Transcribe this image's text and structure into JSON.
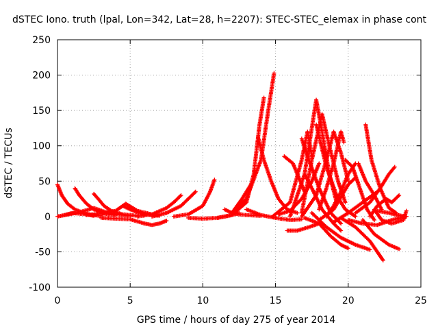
{
  "chart_data": {
    "type": "scatter",
    "title": "dSTEC Iono. truth (lpal, Lon=342, Lat=28, h=2207): STEC-STEC_elemax in phase cont",
    "xlabel": "GPS time / hours of day 275 of year 2014",
    "ylabel": "dSTEC  / TECUs",
    "xlim": [
      0,
      25
    ],
    "ylim": [
      -100,
      250
    ],
    "xticks": [
      "0",
      "5",
      "10",
      "15",
      "20",
      "25"
    ],
    "yticks": [
      "250",
      "200",
      "150",
      "100",
      "50",
      "0",
      "-50",
      "-100"
    ],
    "grid": true,
    "legend": "none",
    "marker": "plus",
    "color": "#ff0000",
    "series": [
      {
        "points": [
          [
            0.0,
            45
          ],
          [
            0.3,
            30
          ],
          [
            0.7,
            18
          ],
          [
            1.2,
            10
          ],
          [
            1.8,
            5
          ],
          [
            2.4,
            2
          ],
          [
            3.0,
            1
          ]
        ]
      },
      {
        "points": [
          [
            0.0,
            0
          ],
          [
            0.5,
            2
          ],
          [
            1.0,
            5
          ],
          [
            1.5,
            4
          ],
          [
            2.0,
            3
          ],
          [
            2.5,
            1
          ]
        ]
      },
      {
        "points": [
          [
            1.2,
            40
          ],
          [
            1.5,
            30
          ],
          [
            2.0,
            18
          ],
          [
            2.5,
            10
          ],
          [
            3.2,
            4
          ],
          [
            4.0,
            2
          ]
        ]
      },
      {
        "points": [
          [
            0.5,
            2
          ],
          [
            1.5,
            6
          ],
          [
            2.5,
            12
          ],
          [
            3.5,
            5
          ],
          [
            4.5,
            2
          ],
          [
            5.0,
            1
          ]
        ]
      },
      {
        "points": [
          [
            2.5,
            32
          ],
          [
            2.8,
            25
          ],
          [
            3.2,
            15
          ],
          [
            3.7,
            8
          ],
          [
            4.5,
            3
          ],
          [
            5.5,
            1
          ]
        ]
      },
      {
        "points": [
          [
            2.0,
            2
          ],
          [
            3.0,
            4
          ],
          [
            4.0,
            8
          ],
          [
            4.7,
            18
          ],
          [
            5.5,
            8
          ],
          [
            6.5,
            3
          ]
        ]
      },
      {
        "points": [
          [
            4.5,
            15
          ],
          [
            5.0,
            10
          ],
          [
            5.5,
            6
          ],
          [
            6.0,
            3
          ],
          [
            7.0,
            1
          ]
        ]
      },
      {
        "points": [
          [
            3.0,
            -2
          ],
          [
            4.0,
            -3
          ],
          [
            5.0,
            -4
          ],
          [
            6.0,
            -10
          ],
          [
            6.5,
            -12
          ],
          [
            7.0,
            -10
          ],
          [
            7.5,
            -6
          ]
        ]
      },
      {
        "points": [
          [
            5.5,
            0
          ],
          [
            6.5,
            3
          ],
          [
            7.5,
            12
          ],
          [
            8.0,
            20
          ],
          [
            8.5,
            30
          ]
        ]
      },
      {
        "points": [
          [
            6.5,
            0
          ],
          [
            7.5,
            5
          ],
          [
            8.5,
            15
          ],
          [
            9.0,
            25
          ],
          [
            9.5,
            35
          ]
        ]
      },
      {
        "points": [
          [
            8.0,
            0
          ],
          [
            9.0,
            3
          ],
          [
            10.0,
            15
          ],
          [
            10.5,
            35
          ],
          [
            10.8,
            52
          ]
        ]
      },
      {
        "points": [
          [
            9.0,
            -2
          ],
          [
            10.0,
            -3
          ],
          [
            11.0,
            -2
          ],
          [
            12.0,
            2
          ],
          [
            12.5,
            5
          ]
        ]
      },
      {
        "points": [
          [
            11.5,
            10
          ],
          [
            12.0,
            5
          ],
          [
            12.5,
            3
          ],
          [
            13.0,
            2
          ],
          [
            14.0,
            1
          ]
        ]
      },
      {
        "points": [
          [
            12.0,
            5
          ],
          [
            12.7,
            25
          ],
          [
            13.0,
            35
          ],
          [
            13.3,
            45
          ]
        ]
      },
      {
        "points": [
          [
            11.0,
            -2
          ],
          [
            12.0,
            2
          ],
          [
            13.0,
            20
          ],
          [
            13.5,
            60
          ],
          [
            13.9,
            130
          ],
          [
            14.2,
            168
          ]
        ]
      },
      {
        "points": [
          [
            12.0,
            5
          ],
          [
            13.0,
            25
          ],
          [
            14.0,
            80
          ],
          [
            14.5,
            150
          ],
          [
            14.9,
            203
          ]
        ]
      },
      {
        "points": [
          [
            13.8,
            112
          ],
          [
            14.2,
            80
          ],
          [
            14.7,
            50
          ],
          [
            15.2,
            25
          ],
          [
            15.8,
            10
          ],
          [
            16.5,
            5
          ]
        ]
      },
      {
        "points": [
          [
            13.0,
            10
          ],
          [
            14.0,
            2
          ],
          [
            15.0,
            -2
          ],
          [
            16.0,
            -5
          ],
          [
            16.8,
            -4
          ]
        ]
      },
      {
        "points": [
          [
            15.2,
            3
          ],
          [
            16.0,
            8
          ],
          [
            16.8,
            25
          ],
          [
            17.5,
            50
          ],
          [
            18.0,
            75
          ]
        ]
      },
      {
        "points": [
          [
            15.6,
            85
          ],
          [
            16.2,
            75
          ],
          [
            16.6,
            55
          ],
          [
            17.0,
            35
          ]
        ]
      },
      {
        "points": [
          [
            15.8,
            -20
          ],
          [
            16.5,
            -20
          ],
          [
            17.3,
            -15
          ],
          [
            18.0,
            -10
          ]
        ]
      },
      {
        "points": [
          [
            16.8,
            110
          ],
          [
            17.3,
            80
          ],
          [
            18.0,
            40
          ],
          [
            18.8,
            5
          ],
          [
            19.5,
            -10
          ]
        ]
      },
      {
        "points": [
          [
            17.0,
            60
          ],
          [
            17.5,
            40
          ],
          [
            18.2,
            10
          ],
          [
            19.0,
            -10
          ],
          [
            19.5,
            -20
          ]
        ]
      },
      {
        "points": [
          [
            14.8,
            0
          ],
          [
            16.0,
            20
          ],
          [
            16.8,
            80
          ],
          [
            17.2,
            120
          ],
          [
            17.5,
            85
          ]
        ]
      },
      {
        "points": [
          [
            16.0,
            0
          ],
          [
            17.0,
            60
          ],
          [
            17.8,
            165
          ],
          [
            18.2,
            120
          ],
          [
            18.7,
            60
          ],
          [
            19.2,
            20
          ]
        ]
      },
      {
        "points": [
          [
            16.8,
            5
          ],
          [
            17.5,
            80
          ],
          [
            18.2,
            145
          ],
          [
            18.7,
            100
          ],
          [
            19.3,
            50
          ],
          [
            19.8,
            20
          ]
        ]
      },
      {
        "points": [
          [
            17.8,
            130
          ],
          [
            18.5,
            70
          ],
          [
            19.2,
            30
          ],
          [
            19.8,
            10
          ],
          [
            20.5,
            0
          ]
        ]
      },
      {
        "points": [
          [
            16.8,
            0
          ],
          [
            17.8,
            30
          ],
          [
            18.5,
            80
          ],
          [
            19.0,
            120
          ],
          [
            19.5,
            90
          ],
          [
            20.0,
            50
          ]
        ]
      },
      {
        "points": [
          [
            18.0,
            10
          ],
          [
            18.5,
            40
          ],
          [
            19.0,
            75
          ],
          [
            19.5,
            120
          ],
          [
            19.7,
            105
          ]
        ]
      },
      {
        "points": [
          [
            17.0,
            -2
          ],
          [
            18.0,
            -10
          ],
          [
            18.8,
            -28
          ],
          [
            19.5,
            -40
          ],
          [
            20.0,
            -45
          ]
        ]
      },
      {
        "points": [
          [
            17.5,
            5
          ],
          [
            18.5,
            -15
          ],
          [
            19.5,
            -30
          ],
          [
            20.5,
            -40
          ],
          [
            21.5,
            -47
          ]
        ]
      },
      {
        "points": [
          [
            18.5,
            0
          ],
          [
            19.0,
            15
          ],
          [
            19.5,
            35
          ],
          [
            20.0,
            60
          ],
          [
            20.5,
            75
          ]
        ]
      },
      {
        "points": [
          [
            18.0,
            -5
          ],
          [
            19.0,
            10
          ],
          [
            20.0,
            45
          ],
          [
            20.5,
            55
          ]
        ]
      },
      {
        "points": [
          [
            19.0,
            -8
          ],
          [
            20.0,
            5
          ],
          [
            21.0,
            20
          ],
          [
            22.0,
            35
          ]
        ]
      },
      {
        "points": [
          [
            19.8,
            80
          ],
          [
            20.3,
            70
          ],
          [
            20.8,
            40
          ],
          [
            21.3,
            10
          ],
          [
            21.8,
            -5
          ]
        ]
      },
      {
        "points": [
          [
            20.7,
            75
          ],
          [
            21.2,
            50
          ],
          [
            21.8,
            30
          ],
          [
            22.3,
            10
          ]
        ]
      },
      {
        "points": [
          [
            19.5,
            -2
          ],
          [
            20.5,
            -15
          ],
          [
            21.5,
            -35
          ],
          [
            22.0,
            -50
          ],
          [
            22.4,
            -62
          ]
        ]
      },
      {
        "points": [
          [
            21.0,
            -5
          ],
          [
            21.8,
            -25
          ],
          [
            22.8,
            -40
          ],
          [
            23.5,
            -46
          ]
        ]
      },
      {
        "points": [
          [
            21.2,
            130
          ],
          [
            21.6,
            80
          ],
          [
            22.2,
            40
          ],
          [
            22.8,
            12
          ],
          [
            23.3,
            5
          ]
        ]
      },
      {
        "points": [
          [
            20.5,
            5
          ],
          [
            21.5,
            20
          ],
          [
            22.2,
            40
          ],
          [
            22.8,
            60
          ],
          [
            23.2,
            70
          ]
        ]
      },
      {
        "points": [
          [
            21.5,
            0
          ],
          [
            22.0,
            15
          ],
          [
            22.6,
            25
          ],
          [
            23.0,
            20
          ],
          [
            23.5,
            30
          ]
        ]
      },
      {
        "points": [
          [
            22.0,
            8
          ],
          [
            22.8,
            5
          ],
          [
            23.4,
            2
          ],
          [
            24.0,
            0
          ]
        ]
      },
      {
        "points": [
          [
            21.8,
            10
          ],
          [
            22.3,
            -5
          ],
          [
            23.0,
            -10
          ],
          [
            23.8,
            -5
          ],
          [
            24.0,
            8
          ]
        ]
      },
      {
        "points": [
          [
            20.0,
            -5
          ],
          [
            21.0,
            -10
          ],
          [
            22.0,
            -12
          ],
          [
            23.0,
            -5
          ],
          [
            24.0,
            0
          ]
        ]
      }
    ]
  }
}
